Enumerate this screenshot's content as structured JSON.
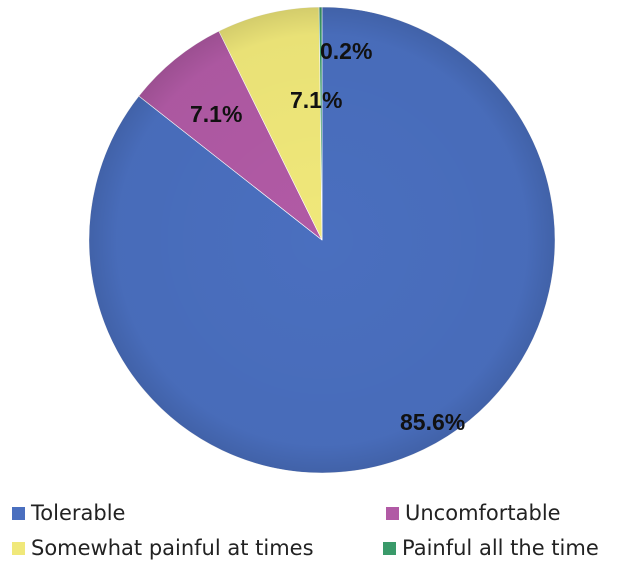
{
  "chart_data": {
    "type": "pie",
    "slices": [
      {
        "label": "Tolerable",
        "value": 85.6,
        "display": "85.6%",
        "color": "#4a6fbf"
      },
      {
        "label": "Uncomfortable",
        "value": 7.1,
        "display": "7.1%",
        "color": "#b15aa5"
      },
      {
        "label": "Somewhat painful at times",
        "value": 7.1,
        "display": "7.1%",
        "color": "#f0e87a"
      },
      {
        "label": "Painful all the time",
        "value": 0.2,
        "display": "0.2%",
        "color": "#3a9a6a"
      }
    ],
    "legend_position": "bottom",
    "start_angle": "12 o'clock",
    "direction": "clockwise"
  }
}
